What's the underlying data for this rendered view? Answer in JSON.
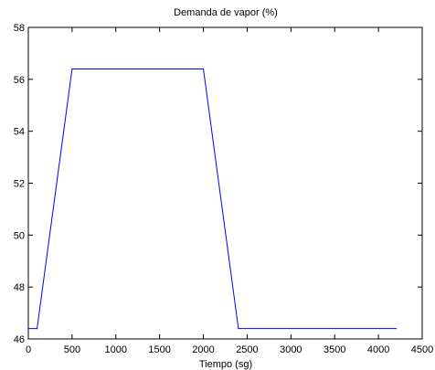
{
  "chart_data": {
    "type": "line",
    "title": "Demanda de vapor (%)",
    "xlabel": "Tiempo (sg)",
    "ylabel": "",
    "xlim": [
      0,
      4500
    ],
    "ylim": [
      46,
      58
    ],
    "xticks": [
      0,
      500,
      1000,
      1500,
      2000,
      2500,
      3000,
      3500,
      4000,
      4500
    ],
    "yticks": [
      46,
      48,
      50,
      52,
      54,
      56,
      58
    ],
    "grid": false,
    "series": [
      {
        "color": "#0000ff",
        "x": [
          0,
          100,
          500,
          2000,
          2400,
          4200
        ],
        "y": [
          46.4,
          46.4,
          56.4,
          56.4,
          46.4,
          46.4
        ]
      }
    ]
  }
}
